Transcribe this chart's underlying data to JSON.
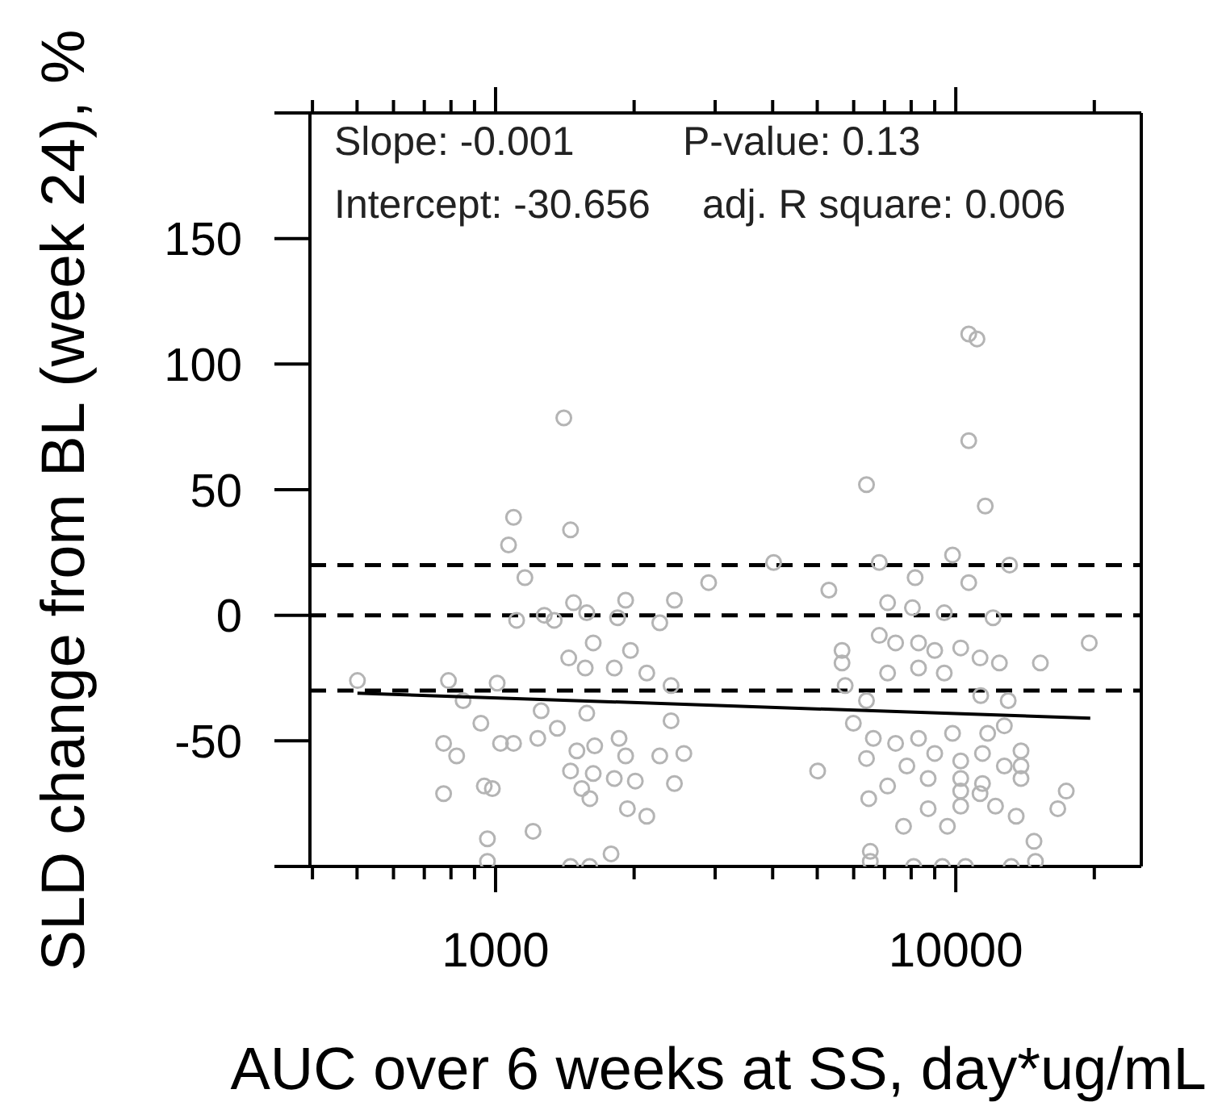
{
  "chart_data": {
    "type": "scatter",
    "xlabel": "AUC over 6 weeks at SS, day*ug/mL",
    "ylabel": "SLD change from BL (week 24), %",
    "annotations": [
      "Slope: -0.001",
      "P-value: 0.13",
      "Intercept: -30.656",
      "adj. R square: 0.006"
    ],
    "log": "x",
    "marker": "circle",
    "xlim": [
      395,
      25300
    ],
    "ylim": [
      -100,
      200
    ],
    "xticks": [
      {
        "value": 400,
        "label": null
      },
      {
        "value": 500,
        "label": null
      },
      {
        "value": 600,
        "label": null
      },
      {
        "value": 700,
        "label": null
      },
      {
        "value": 800,
        "label": null
      },
      {
        "value": 900,
        "label": null
      },
      1000,
      {
        "value": 2000,
        "label": null
      },
      {
        "value": 3000,
        "label": null
      },
      {
        "value": 4000,
        "label": null
      },
      {
        "value": 5000,
        "label": null
      },
      {
        "value": 6000,
        "label": null
      },
      {
        "value": 7000,
        "label": null
      },
      {
        "value": 8000,
        "label": null
      },
      {
        "value": 9000,
        "label": null
      },
      10000,
      {
        "value": 20000,
        "label": null
      }
    ],
    "yticks": [
      {
        "value": -100,
        "label": null
      },
      -50,
      0,
      50,
      100,
      150,
      {
        "value": 200,
        "label": null
      }
    ],
    "ref_lines": [
      {
        "axis": "y",
        "value": 20,
        "color": "#000000",
        "line_style": "dashed"
      },
      {
        "axis": "y",
        "value": 0,
        "color": "#000000",
        "line_style": "dashed"
      },
      {
        "axis": "y",
        "value": -30,
        "color": "#000000",
        "line_style": "dashed"
      }
    ],
    "series": [
      {
        "color": "#b4b4b4",
        "x": [
          1407,
          1094,
          1455,
          1067,
          1158,
          2904,
          1111,
          1276,
          1341,
          1477,
          1578,
          1841,
          1917,
          2274,
          2447,
          1630,
          1442,
          1566,
          1964,
          1811,
          2131,
          501,
          790,
          1008,
          2406,
          850,
          1256,
          1578,
          929,
          1362,
          2406,
          1235,
          1025,
          1094,
          771,
          823,
          1502,
          1642,
          1855,
          1917,
          2274,
          2565,
          1455,
          1630,
          1811,
          2012,
          2447,
          945,
          984,
          771,
          1539,
          1603,
          1934,
          2131,
          960,
          1206,
          1782,
          1455,
          1601,
          960,
          10670,
          11120,
          10670,
          6397,
          11590,
          4020,
          6820,
          9840,
          13090,
          8160,
          10670,
          5300,
          7110,
          8050,
          9440,
          12050,
          19500,
          5660,
          6820,
          7400,
          8300,
          9000,
          10250,
          11290,
          12440,
          15270,
          5660,
          7110,
          8300,
          9440,
          5750,
          11330,
          13000,
          6397,
          5990,
          6620,
          7400,
          8300,
          9840,
          11730,
          12750,
          6397,
          7830,
          9000,
          10250,
          11430,
          13860,
          13860,
          5010,
          12750,
          7110,
          8710,
          10250,
          11430,
          13860,
          6470,
          10250,
          11290,
          12200,
          10250,
          17380,
          16660,
          8710,
          7700,
          9590,
          13530,
          14790,
          6520,
          6520,
          14900,
          8100,
          9350,
          10500,
          13200
        ],
        "values": [
          78.6,
          39,
          34,
          28,
          15,
          13,
          -2,
          0,
          -2,
          5,
          1,
          -1,
          6,
          -3,
          6,
          -11,
          -17,
          -21,
          -14,
          -21,
          -23,
          -26,
          -26,
          -27,
          -28,
          -34,
          -38,
          -39,
          -43,
          -45,
          -42,
          -49,
          -51,
          -51,
          -51,
          -56,
          -54,
          -52,
          -49,
          -56,
          -56,
          -55,
          -62,
          -63,
          -65,
          -66,
          -67,
          -68,
          -69,
          -71,
          -69,
          -73,
          -77,
          -80,
          -89,
          -86,
          -95,
          -100,
          -100,
          -98,
          112,
          110,
          69.5,
          52,
          43.5,
          21,
          21,
          24,
          20,
          15,
          13,
          10,
          5,
          3,
          1,
          -1,
          -11,
          -14,
          -8,
          -11,
          -11,
          -14,
          -13,
          -17,
          -19,
          -19,
          -19,
          -23,
          -21,
          -23,
          -28,
          -32,
          -34,
          -34,
          -43,
          -49,
          -51,
          -49,
          -47,
          -47,
          -44,
          -57,
          -60,
          -55,
          -58,
          -55,
          -54,
          -60,
          -62,
          -60,
          -68,
          -65,
          -65,
          -67,
          -65,
          -73,
          -70,
          -71,
          -76,
          -76,
          -70,
          -77,
          -77,
          -84,
          -84,
          -80,
          -90,
          -94,
          -98,
          -98,
          -100,
          -100,
          -100,
          -100
        ]
      },
      {
        "type": "line",
        "marker": "none",
        "color": "#000000",
        "x": [
          501,
          19600
        ],
        "values": [
          -31,
          -41
        ]
      }
    ]
  }
}
